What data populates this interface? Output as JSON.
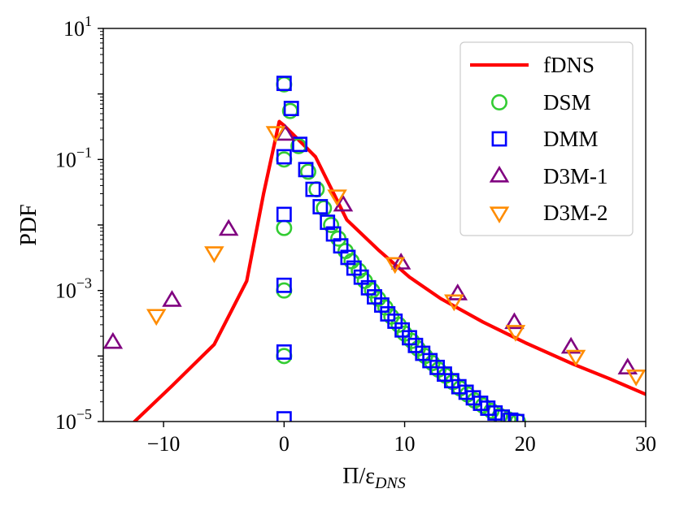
{
  "chart_data": {
    "type": "scatter",
    "xlabel": "Π/ε",
    "xlabel_subscript": "DNS",
    "ylabel": "PDF",
    "xlim": [
      -15,
      30
    ],
    "ylim": [
      1e-05,
      10
    ],
    "yscale": "log",
    "grid": false,
    "legend_position": "top-right",
    "x_ticks": [
      -10,
      0,
      10,
      20,
      30
    ],
    "x_tick_labels": [
      "−10",
      "0",
      "10",
      "20",
      "30"
    ],
    "y_ticks": [
      {
        "value": 10,
        "base": "10",
        "exp": "1"
      },
      {
        "value": 0.1,
        "base": "10",
        "exp": "−1"
      },
      {
        "value": 0.001,
        "base": "10",
        "exp": "−3"
      },
      {
        "value": 1e-05,
        "base": "10",
        "exp": "−5"
      }
    ],
    "series": [
      {
        "name": "fDNS",
        "kind": "line",
        "color": "#ff0000",
        "points": [
          [
            -12.4,
            1e-05
          ],
          [
            -9.3,
            3.5e-05
          ],
          [
            -5.8,
            0.00015
          ],
          [
            -3.1,
            0.0014
          ],
          [
            -1.7,
            0.03
          ],
          [
            -0.4,
            0.38
          ],
          [
            0,
            0.33
          ],
          [
            1.2,
            0.2
          ],
          [
            2.6,
            0.11
          ],
          [
            5.2,
            0.012
          ],
          [
            7.8,
            0.0042
          ],
          [
            10.4,
            0.0016
          ],
          [
            13,
            0.00075
          ],
          [
            16.5,
            0.00033
          ],
          [
            20,
            0.00016
          ],
          [
            24,
            7.5e-05
          ],
          [
            27,
            4.5e-05
          ],
          [
            30,
            2.6e-05
          ]
        ]
      },
      {
        "name": "DSM",
        "kind": "circle",
        "color": "#33cc33",
        "points": [
          [
            0,
            1.4
          ],
          [
            0.5,
            0.55
          ],
          [
            1.2,
            0.16
          ],
          [
            0,
            0.1
          ],
          [
            2,
            0.065
          ],
          [
            2.7,
            0.035
          ],
          [
            3.3,
            0.018
          ],
          [
            3.9,
            0.01
          ],
          [
            0,
            0.009
          ],
          [
            4.5,
            0.0062
          ],
          [
            5.1,
            0.004
          ],
          [
            5.6,
            0.0028
          ],
          [
            6.2,
            0.002
          ],
          [
            6.7,
            0.0014
          ],
          [
            7.3,
            0.001
          ],
          [
            0,
            0.001
          ],
          [
            7.8,
            0.00075
          ],
          [
            8.4,
            0.00055
          ],
          [
            8.9,
            0.0004
          ],
          [
            9.5,
            0.0003
          ],
          [
            10,
            0.00022
          ],
          [
            10.6,
            0.00017
          ],
          [
            11.1,
            0.00013
          ],
          [
            0,
            0.0001
          ],
          [
            11.7,
            0.0001
          ],
          [
            12.3,
            7.8e-05
          ],
          [
            12.8,
            6.2e-05
          ],
          [
            13.4,
            5e-05
          ],
          [
            14,
            4e-05
          ],
          [
            14.6,
            3.2e-05
          ],
          [
            15.2,
            2.6e-05
          ],
          [
            15.8,
            2.1e-05
          ],
          [
            16.5,
            1.75e-05
          ],
          [
            17.2,
            1.45e-05
          ],
          [
            17.9,
            1.22e-05
          ],
          [
            18.6,
            1.08e-05
          ],
          [
            19.4,
            1e-05
          ]
        ]
      },
      {
        "name": "DMM",
        "kind": "square",
        "color": "#0000ff",
        "points": [
          [
            0,
            1.45
          ],
          [
            0.6,
            0.6
          ],
          [
            1.3,
            0.17
          ],
          [
            0,
            0.11
          ],
          [
            1.8,
            0.07
          ],
          [
            2.4,
            0.035
          ],
          [
            3,
            0.019
          ],
          [
            3.6,
            0.011
          ],
          [
            0,
            0.0145
          ],
          [
            4.1,
            0.0073
          ],
          [
            4.7,
            0.0048
          ],
          [
            5.3,
            0.0032
          ],
          [
            5.8,
            0.0022
          ],
          [
            6.4,
            0.0016
          ],
          [
            7,
            0.0011
          ],
          [
            0,
            0.0012
          ],
          [
            7.5,
            0.0008
          ],
          [
            8.1,
            0.0006
          ],
          [
            8.6,
            0.00044
          ],
          [
            9.2,
            0.00034
          ],
          [
            9.8,
            0.00025
          ],
          [
            10.4,
            0.00019
          ],
          [
            10.9,
            0.000145
          ],
          [
            0,
            0.000115
          ],
          [
            11.5,
            0.00011
          ],
          [
            12.1,
            8.5e-05
          ],
          [
            12.7,
            6.7e-05
          ],
          [
            13.3,
            5.3e-05
          ],
          [
            13.9,
            4.2e-05
          ],
          [
            14.5,
            3.4e-05
          ],
          [
            15.1,
            2.8e-05
          ],
          [
            15.7,
            2.3e-05
          ],
          [
            16.3,
            1.9e-05
          ],
          [
            16.9,
            1.6e-05
          ],
          [
            17.5,
            1.35e-05
          ],
          [
            18.1,
            1.17e-05
          ],
          [
            18.8,
            1.05e-05
          ],
          [
            19.3,
            1e-05
          ],
          [
            0,
            1.1e-05
          ]
        ]
      },
      {
        "name": "D3M-1",
        "kind": "triangle-up",
        "color": "#800080",
        "points": [
          [
            -14.2,
            0.00016
          ],
          [
            -9.3,
            0.0007
          ],
          [
            -4.6,
            0.0085
          ],
          [
            0.1,
            0.24
          ],
          [
            4.9,
            0.02
          ],
          [
            9.7,
            0.0026
          ],
          [
            14.4,
            0.00088
          ],
          [
            19.1,
            0.00032
          ],
          [
            23.8,
            0.000135
          ],
          [
            28.5,
            6.5e-05
          ]
        ]
      },
      {
        "name": "D3M-2",
        "kind": "triangle-down",
        "color": "#ff8c00",
        "points": [
          [
            -10.6,
            0.00042
          ],
          [
            -5.8,
            0.0038
          ],
          [
            -0.7,
            0.26
          ],
          [
            4.4,
            0.028
          ],
          [
            9.2,
            0.0026
          ],
          [
            14.1,
            0.0007
          ],
          [
            19.2,
            0.00024
          ],
          [
            24.2,
            0.0001
          ],
          [
            29.2,
            5e-05
          ]
        ]
      }
    ]
  }
}
